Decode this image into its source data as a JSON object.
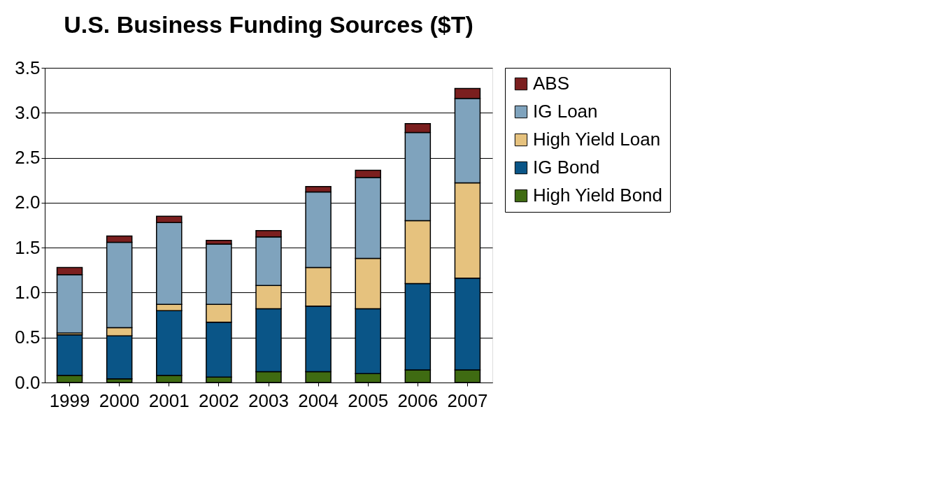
{
  "chart_data": {
    "type": "bar",
    "title": "U.S. Business Funding Sources ($T)",
    "stacked": true,
    "categories": [
      "1999",
      "2000",
      "2001",
      "2002",
      "2003",
      "2004",
      "2005",
      "2006",
      "2007"
    ],
    "series": [
      {
        "name": "High Yield Bond",
        "color": "#3f6b12",
        "values": [
          0.08,
          0.04,
          0.08,
          0.06,
          0.12,
          0.12,
          0.1,
          0.14,
          0.14
        ]
      },
      {
        "name": "IG Bond",
        "color": "#0a5587",
        "values": [
          0.45,
          0.48,
          0.72,
          0.61,
          0.7,
          0.73,
          0.72,
          0.96,
          1.02
        ]
      },
      {
        "name": "High Yield Loan",
        "color": "#e6c27e",
        "values": [
          0.02,
          0.09,
          0.07,
          0.2,
          0.26,
          0.43,
          0.56,
          0.7,
          1.06
        ]
      },
      {
        "name": "IG Loan",
        "color": "#7fa3bd",
        "values": [
          0.65,
          0.95,
          0.91,
          0.67,
          0.54,
          0.84,
          0.9,
          0.98,
          0.94
        ]
      },
      {
        "name": "ABS",
        "color": "#7b1f1f",
        "values": [
          0.08,
          0.07,
          0.07,
          0.04,
          0.07,
          0.06,
          0.08,
          0.1,
          0.11
        ]
      }
    ],
    "ylim": [
      0,
      3.5
    ],
    "yticks": [
      {
        "value": 0,
        "label": "0.0"
      },
      {
        "value": 0.5,
        "label": "0.5"
      },
      {
        "value": 1,
        "label": "1.0"
      },
      {
        "value": 1.5,
        "label": "1.5"
      },
      {
        "value": 2,
        "label": "2.0"
      },
      {
        "value": 2.5,
        "label": "2.5"
      },
      {
        "value": 3,
        "label": "3.0"
      },
      {
        "value": 3.5,
        "label": "3.5"
      }
    ],
    "grid": "y",
    "legend": "right"
  }
}
